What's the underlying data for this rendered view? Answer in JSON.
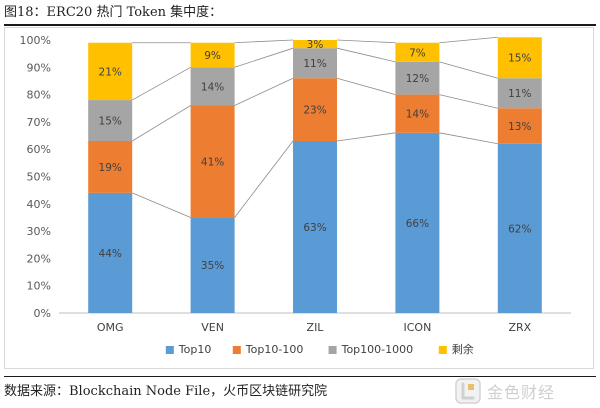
{
  "figure": {
    "title": "图18：ERC20 热门 Token 集中度：",
    "source": "数据来源：Blockchain Node File，火币区块链研究院",
    "watermark_text": "金色财经"
  },
  "chart_data": {
    "type": "bar",
    "stacked": true,
    "normalized": true,
    "categories": [
      "OMG",
      "VEN",
      "ZIL",
      "ICON",
      "ZRX"
    ],
    "series": [
      {
        "name": "Top10",
        "color": "#5b9bd5",
        "values": [
          44,
          35,
          63,
          66,
          62
        ],
        "labels": [
          "44%",
          "35%",
          "63%",
          "66%",
          "62%"
        ]
      },
      {
        "name": "Top10-100",
        "color": "#ed7d31",
        "values": [
          19,
          41,
          23,
          14,
          13
        ],
        "labels": [
          "19%",
          "41%",
          "23%",
          "14%",
          "13%"
        ]
      },
      {
        "name": "Top100-1000",
        "color": "#a5a5a5",
        "values": [
          15,
          14,
          11,
          12,
          11
        ],
        "labels": [
          "15%",
          "14%",
          "11%",
          "12%",
          "11%"
        ]
      },
      {
        "name": "剩余",
        "color": "#ffc000",
        "values": [
          21,
          9,
          3,
          7,
          15
        ],
        "labels": [
          "21%",
          "9%",
          "3%",
          "7%",
          "15%"
        ]
      }
    ],
    "y_ticks": [
      "0%",
      "10%",
      "20%",
      "30%",
      "40%",
      "50%",
      "60%",
      "70%",
      "80%",
      "90%",
      "100%"
    ],
    "ylim": [
      0,
      100
    ],
    "grid": false,
    "series_connector_lines": true,
    "legend_position": "bottom"
  }
}
